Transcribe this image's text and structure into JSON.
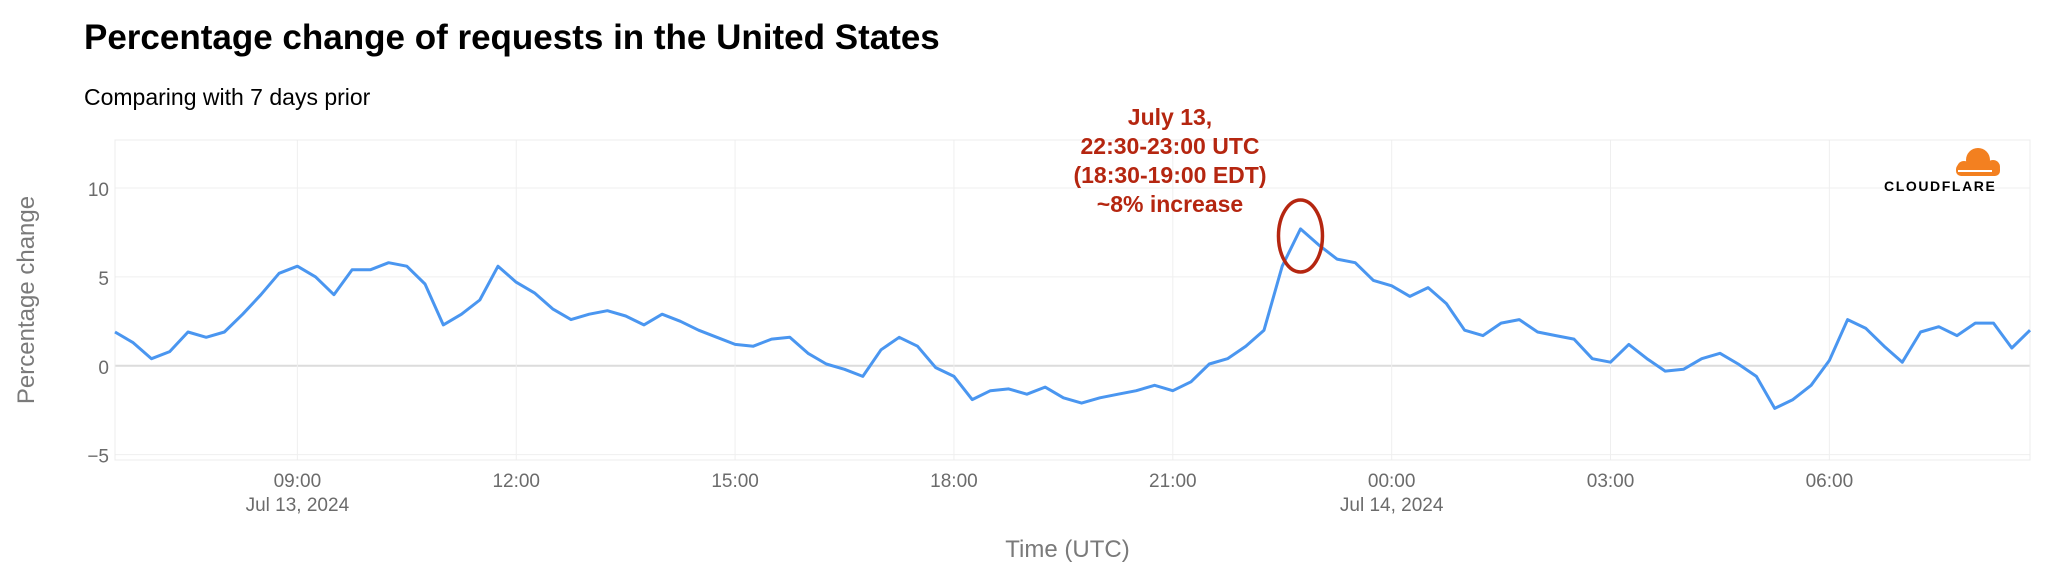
{
  "chart_data": {
    "type": "line",
    "title": "Percentage change of requests in the United States",
    "subtitle": "Comparing with 7 days prior",
    "xlabel": "Time (UTC)",
    "ylabel": "Percentage change",
    "ylim": [
      -5.3,
      12.7
    ],
    "yticks": [
      10,
      5,
      0,
      -5
    ],
    "ytick_labels": [
      "10",
      "5",
      "0",
      "−5"
    ],
    "xlim": [
      "2024-07-13 06:30",
      "2024-07-14 08:45"
    ],
    "xticks": [
      {
        "x": "2024-07-13 09:00",
        "label": "09:00",
        "sublabel": "Jul 13, 2024"
      },
      {
        "x": "2024-07-13 12:00",
        "label": "12:00",
        "sublabel": ""
      },
      {
        "x": "2024-07-13 15:00",
        "label": "15:00",
        "sublabel": ""
      },
      {
        "x": "2024-07-13 18:00",
        "label": "18:00",
        "sublabel": ""
      },
      {
        "x": "2024-07-13 21:00",
        "label": "21:00",
        "sublabel": ""
      },
      {
        "x": "2024-07-14 00:00",
        "label": "00:00",
        "sublabel": "Jul 14, 2024"
      },
      {
        "x": "2024-07-14 03:00",
        "label": "03:00",
        "sublabel": ""
      },
      {
        "x": "2024-07-14 06:00",
        "label": "06:00",
        "sublabel": ""
      }
    ],
    "grid": true,
    "color": "#4a96f0",
    "series": [
      {
        "points": [
          [
            "2024-07-13 06:30",
            1.9
          ],
          [
            "2024-07-13 06:45",
            1.3
          ],
          [
            "2024-07-13 07:00",
            0.4
          ],
          [
            "2024-07-13 07:15",
            0.8
          ],
          [
            "2024-07-13 07:30",
            1.9
          ],
          [
            "2024-07-13 07:45",
            1.6
          ],
          [
            "2024-07-13 08:00",
            1.9
          ],
          [
            "2024-07-13 08:15",
            2.9
          ],
          [
            "2024-07-13 08:30",
            4.0
          ],
          [
            "2024-07-13 08:45",
            5.2
          ],
          [
            "2024-07-13 09:00",
            5.6
          ],
          [
            "2024-07-13 09:15",
            5.0
          ],
          [
            "2024-07-13 09:30",
            4.0
          ],
          [
            "2024-07-13 09:45",
            5.4
          ],
          [
            "2024-07-13 10:00",
            5.4
          ],
          [
            "2024-07-13 10:15",
            5.8
          ],
          [
            "2024-07-13 10:30",
            5.6
          ],
          [
            "2024-07-13 10:45",
            4.6
          ],
          [
            "2024-07-13 11:00",
            2.3
          ],
          [
            "2024-07-13 11:15",
            2.9
          ],
          [
            "2024-07-13 11:30",
            3.7
          ],
          [
            "2024-07-13 11:45",
            5.6
          ],
          [
            "2024-07-13 12:00",
            4.7
          ],
          [
            "2024-07-13 12:15",
            4.1
          ],
          [
            "2024-07-13 12:30",
            3.2
          ],
          [
            "2024-07-13 12:45",
            2.6
          ],
          [
            "2024-07-13 13:00",
            2.9
          ],
          [
            "2024-07-13 13:15",
            3.1
          ],
          [
            "2024-07-13 13:30",
            2.8
          ],
          [
            "2024-07-13 13:45",
            2.3
          ],
          [
            "2024-07-13 14:00",
            2.9
          ],
          [
            "2024-07-13 14:15",
            2.5
          ],
          [
            "2024-07-13 14:30",
            2.0
          ],
          [
            "2024-07-13 14:45",
            1.6
          ],
          [
            "2024-07-13 15:00",
            1.2
          ],
          [
            "2024-07-13 15:15",
            1.1
          ],
          [
            "2024-07-13 15:30",
            1.5
          ],
          [
            "2024-07-13 15:45",
            1.6
          ],
          [
            "2024-07-13 16:00",
            0.7
          ],
          [
            "2024-07-13 16:15",
            0.1
          ],
          [
            "2024-07-13 16:30",
            -0.2
          ],
          [
            "2024-07-13 16:45",
            -0.6
          ],
          [
            "2024-07-13 17:00",
            0.9
          ],
          [
            "2024-07-13 17:15",
            1.6
          ],
          [
            "2024-07-13 17:30",
            1.1
          ],
          [
            "2024-07-13 17:45",
            -0.1
          ],
          [
            "2024-07-13 18:00",
            -0.6
          ],
          [
            "2024-07-13 18:15",
            -1.9
          ],
          [
            "2024-07-13 18:30",
            -1.4
          ],
          [
            "2024-07-13 18:45",
            -1.3
          ],
          [
            "2024-07-13 19:00",
            -1.6
          ],
          [
            "2024-07-13 19:15",
            -1.2
          ],
          [
            "2024-07-13 19:30",
            -1.8
          ],
          [
            "2024-07-13 19:45",
            -2.1
          ],
          [
            "2024-07-13 20:00",
            -1.8
          ],
          [
            "2024-07-13 20:15",
            -1.6
          ],
          [
            "2024-07-13 20:30",
            -1.4
          ],
          [
            "2024-07-13 20:45",
            -1.1
          ],
          [
            "2024-07-13 21:00",
            -1.4
          ],
          [
            "2024-07-13 21:15",
            -0.9
          ],
          [
            "2024-07-13 21:30",
            0.1
          ],
          [
            "2024-07-13 21:45",
            0.4
          ],
          [
            "2024-07-13 22:00",
            1.1
          ],
          [
            "2024-07-13 22:15",
            2.0
          ],
          [
            "2024-07-13 22:30",
            5.6
          ],
          [
            "2024-07-13 22:45",
            7.7
          ],
          [
            "2024-07-13 23:00",
            6.8
          ],
          [
            "2024-07-13 23:15",
            6.0
          ],
          [
            "2024-07-13 23:30",
            5.8
          ],
          [
            "2024-07-13 23:45",
            4.8
          ],
          [
            "2024-07-14 00:00",
            4.5
          ],
          [
            "2024-07-14 00:15",
            3.9
          ],
          [
            "2024-07-14 00:30",
            4.4
          ],
          [
            "2024-07-14 00:45",
            3.5
          ],
          [
            "2024-07-14 01:00",
            2.0
          ],
          [
            "2024-07-14 01:15",
            1.7
          ],
          [
            "2024-07-14 01:30",
            2.4
          ],
          [
            "2024-07-14 01:45",
            2.6
          ],
          [
            "2024-07-14 02:00",
            1.9
          ],
          [
            "2024-07-14 02:15",
            1.7
          ],
          [
            "2024-07-14 02:30",
            1.5
          ],
          [
            "2024-07-14 02:45",
            0.4
          ],
          [
            "2024-07-14 03:00",
            0.2
          ],
          [
            "2024-07-14 03:15",
            1.2
          ],
          [
            "2024-07-14 03:30",
            0.4
          ],
          [
            "2024-07-14 03:45",
            -0.3
          ],
          [
            "2024-07-14 04:00",
            -0.2
          ],
          [
            "2024-07-14 04:15",
            0.4
          ],
          [
            "2024-07-14 04:30",
            0.7
          ],
          [
            "2024-07-14 04:45",
            0.1
          ],
          [
            "2024-07-14 05:00",
            -0.6
          ],
          [
            "2024-07-14 05:15",
            -2.4
          ],
          [
            "2024-07-14 05:30",
            -1.9
          ],
          [
            "2024-07-14 05:45",
            -1.1
          ],
          [
            "2024-07-14 06:00",
            0.3
          ],
          [
            "2024-07-14 06:15",
            2.6
          ],
          [
            "2024-07-14 06:30",
            2.1
          ],
          [
            "2024-07-14 06:45",
            1.1
          ],
          [
            "2024-07-14 07:00",
            0.2
          ],
          [
            "2024-07-14 07:15",
            1.9
          ],
          [
            "2024-07-14 07:30",
            2.2
          ],
          [
            "2024-07-14 07:45",
            1.7
          ],
          [
            "2024-07-14 08:00",
            2.4
          ],
          [
            "2024-07-14 08:15",
            2.4
          ],
          [
            "2024-07-14 08:30",
            1.0
          ],
          [
            "2024-07-14 08:45",
            2.0
          ]
        ]
      }
    ],
    "annotation": {
      "lines": [
        "July 13,",
        "22:30-23:00 UTC",
        "(18:30-19:00 EDT)",
        "~8% increase"
      ],
      "color": "#b52610",
      "target": [
        "2024-07-13 22:45",
        7.3
      ]
    }
  },
  "branding": {
    "logo_icon": "cloudflare-cloud-icon",
    "logo_text": "CLOUDFLARE",
    "logo_color": "#f38020"
  }
}
